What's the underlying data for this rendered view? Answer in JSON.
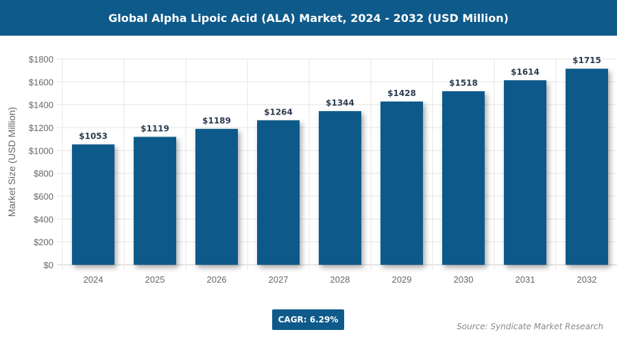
{
  "header": {
    "title": "Global Alpha Lipoic Acid (ALA) Market, 2024 - 2032 (USD Million)"
  },
  "chart_data": {
    "type": "bar",
    "title": "Global Alpha Lipoic Acid (ALA) Market, 2024 - 2032 (USD Million)",
    "categories": [
      "2024",
      "2025",
      "2026",
      "2027",
      "2028",
      "2029",
      "2030",
      "2031",
      "2032"
    ],
    "values": [
      1053,
      1119,
      1189,
      1264,
      1344,
      1428,
      1518,
      1614,
      1715
    ],
    "data_labels": [
      "$1053",
      "$1119",
      "$1189",
      "$1264",
      "$1344",
      "$1428",
      "$1518",
      "$1614",
      "$1715"
    ],
    "xlabel": "",
    "ylabel": "Market Size (USD Million)",
    "ylim": [
      0,
      1800
    ],
    "yticks": [
      "$0",
      "$200",
      "$400",
      "$600",
      "$800",
      "$1000",
      "$1200",
      "$1400",
      "$1600",
      "$1800"
    ],
    "grid": true,
    "bar_color": "#0e5a8a"
  },
  "footer": {
    "cagr": "CAGR: 6.29%",
    "source": "Source: Syndicate Market Research"
  }
}
